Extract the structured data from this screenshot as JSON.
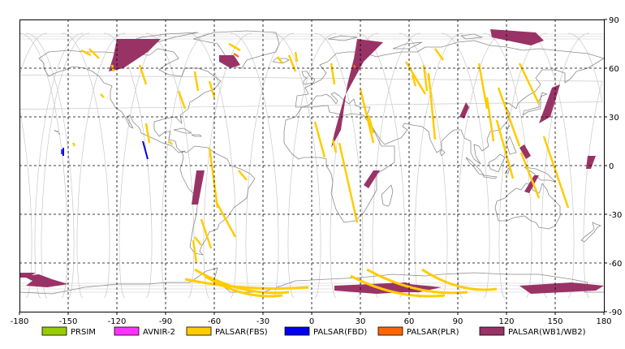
{
  "map": {
    "x_ticks": [
      "-180",
      "-150",
      "-120",
      "-90",
      "-60",
      "-30",
      "0",
      "30",
      "60",
      "90",
      "120",
      "150",
      "180"
    ],
    "y_ticks": [
      "90",
      "60",
      "30",
      "0",
      "-30",
      "-60",
      "-90"
    ],
    "grid": true,
    "grid_style": "dashed"
  },
  "legend": [
    {
      "label": "PRSIM",
      "color": "#99cc00"
    },
    {
      "label": "AVNIR-2",
      "color": "#ff33ff"
    },
    {
      "label": "PALSAR(FBS)",
      "color": "#ffcc00"
    },
    {
      "label": "PALSAR(FBD)",
      "color": "#0000ee"
    },
    {
      "label": "PALSAR(PLR)",
      "color": "#ff6600"
    },
    {
      "label": "PALSAR(WB1/WB2)",
      "color": "#993366"
    }
  ],
  "colors": {
    "frame": "#000000",
    "orbit_lines": "#c8c8c8",
    "coastline": "#8c8c8c",
    "background": "#ffffff"
  }
}
